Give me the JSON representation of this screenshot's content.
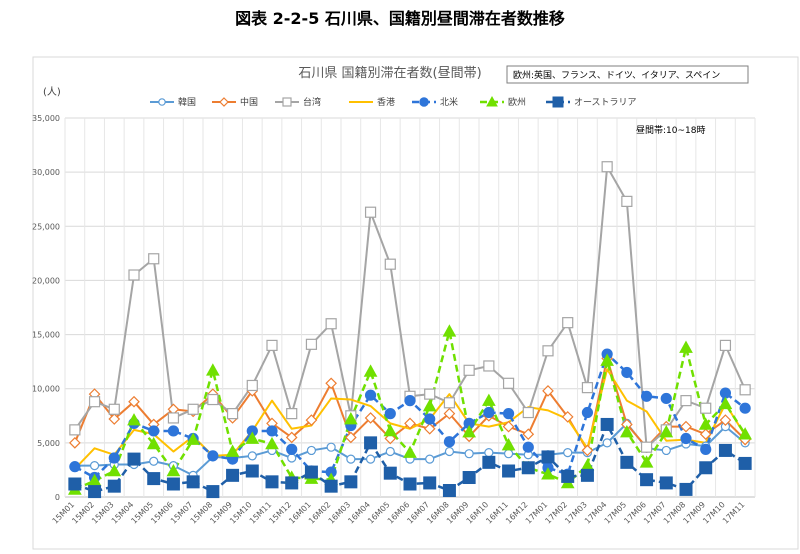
{
  "page": {
    "title": "図表 2-2-5 石川県、国籍別昼間滞在者数推移"
  },
  "chart_data": {
    "type": "line",
    "title": "石川県 国籍別滞在者数(昼間帯)",
    "note": "欧州:英国、フランス、ドイツ、イタリア、スペイン",
    "period_note": "昼間帯:10~18時",
    "ylabel": "(人)",
    "xlabel": "",
    "ylim": [
      0,
      35000
    ],
    "yticks": [
      0,
      5000,
      10000,
      15000,
      20000,
      25000,
      30000,
      35000
    ],
    "ytick_labels": [
      "0",
      "5,000",
      "10,000",
      "15,000",
      "20,000",
      "25,000",
      "30,000",
      "35,000"
    ],
    "grid": true,
    "legend_position": "top",
    "categories": [
      "15M01",
      "15M02",
      "15M03",
      "15M04",
      "15M05",
      "15M06",
      "15M07",
      "15M08",
      "15M09",
      "15M10",
      "15M11",
      "15M12",
      "16M01",
      "16M02",
      "16M03",
      "16M04",
      "16M05",
      "16M06",
      "16M07",
      "16M08",
      "16M09",
      "16M10",
      "16M11",
      "16M12",
      "17M01",
      "17M02",
      "17M03",
      "17M04",
      "17M05",
      "17M06",
      "17M07",
      "17M08",
      "17M09",
      "17M10",
      "17M11"
    ],
    "x_tick_labels": [
      "15M01",
      "15M02",
      "15M03",
      "15M04",
      "15M05",
      "15M06",
      "15M07",
      "15M08",
      "15M09",
      "15M10",
      "15M11",
      "15M12",
      "16M01",
      "16M02",
      "16M03",
      "16M04",
      "16M05",
      "16M06",
      "16M07",
      "16M08",
      "16M09",
      "16M10",
      "16M11",
      "16M12",
      "17M01",
      "17M02",
      "17M03",
      "17M04",
      "17M05",
      "17M06",
      "17M07",
      "17M08",
      "17M09",
      "17M10",
      "17M11"
    ],
    "series": [
      {
        "name": "韓国",
        "color": "#5B9BD5",
        "dash": "solid",
        "marker": "circle-open",
        "marker_size": 5,
        "stroke_width": 2,
        "values": [
          2900,
          2900,
          3000,
          3000,
          3300,
          2900,
          2000,
          3700,
          3600,
          3800,
          4300,
          3600,
          4300,
          4600,
          3500,
          3500,
          4200,
          3500,
          3500,
          4200,
          4000,
          4100,
          4000,
          3900,
          3900,
          4100,
          4100,
          5000,
          6800,
          4500,
          4300,
          4900,
          4700,
          6500,
          5000
        ]
      },
      {
        "name": "中国",
        "color": "#ED7D31",
        "dash": "solid",
        "marker": "diamond-open",
        "marker_size": 5,
        "stroke_width": 2,
        "values": [
          5000,
          9500,
          7200,
          8800,
          6700,
          8100,
          7900,
          9500,
          7300,
          9800,
          6800,
          5500,
          7100,
          10500,
          5500,
          7300,
          5400,
          6800,
          6300,
          7700,
          5600,
          7500,
          6500,
          5800,
          9800,
          7400,
          4300,
          12800,
          6700,
          4600,
          6500,
          6500,
          5800,
          7100,
          5300
        ]
      },
      {
        "name": "台湾",
        "color": "#A5A5A5",
        "dash": "solid",
        "marker": "square-open",
        "marker_size": 5,
        "stroke_width": 2,
        "values": [
          6200,
          8800,
          8100,
          20500,
          22000,
          7300,
          8100,
          9000,
          7700,
          10300,
          14000,
          7700,
          14100,
          16000,
          7500,
          26300,
          21500,
          9300,
          9500,
          8700,
          11700,
          12100,
          10500,
          7800,
          13500,
          16100,
          10100,
          30500,
          27300,
          4600,
          6200,
          8900,
          8200,
          14000,
          9900
        ]
      },
      {
        "name": "香港",
        "color": "#FFC000",
        "dash": "solid",
        "marker": "none",
        "marker_size": 0,
        "stroke_width": 2,
        "values": [
          2600,
          4500,
          3900,
          6200,
          5800,
          4200,
          5600,
          3800,
          3900,
          6100,
          8900,
          6300,
          6600,
          9100,
          9000,
          8400,
          6800,
          6300,
          7200,
          9500,
          6800,
          6500,
          6900,
          8300,
          8000,
          7200,
          4500,
          11800,
          8900,
          7900,
          5200,
          5300,
          5000,
          8600,
          5700
        ]
      },
      {
        "name": "北米",
        "color": "#2E75D9",
        "dash": "dashed",
        "marker": "circle",
        "marker_size": 6,
        "stroke_width": 2.5,
        "values": [
          2800,
          1800,
          3600,
          6800,
          6100,
          6100,
          5400,
          3800,
          3500,
          6100,
          6100,
          4400,
          2400,
          2300,
          6600,
          9400,
          7700,
          8900,
          7200,
          5100,
          6800,
          7800,
          7700,
          4600,
          2700,
          2100,
          7800,
          13200,
          11500,
          9300,
          9100,
          5400,
          4400,
          9600,
          8200
        ]
      },
      {
        "name": "欧州",
        "color": "#70E000",
        "dash": "dashed",
        "marker": "triangle",
        "marker_size": 6,
        "stroke_width": 2.5,
        "values": [
          700,
          1500,
          2400,
          7100,
          4900,
          2400,
          5300,
          11700,
          4200,
          5400,
          4900,
          1800,
          1700,
          1600,
          7200,
          11600,
          6100,
          4100,
          8400,
          15300,
          6000,
          8900,
          4800,
          2700,
          2100,
          1300,
          2900,
          12600,
          6000,
          3200,
          6000,
          13800,
          6700,
          8600,
          5800
        ]
      },
      {
        "name": "オーストラリア",
        "color": "#1F5FA8",
        "dash": "dashed",
        "marker": "square",
        "marker_size": 6,
        "stroke_width": 2.5,
        "values": [
          1200,
          500,
          1000,
          3500,
          1700,
          1200,
          1400,
          500,
          2000,
          2400,
          1400,
          1300,
          2300,
          1000,
          1400,
          5000,
          2200,
          1200,
          1300,
          600,
          1800,
          3200,
          2400,
          2700,
          3700,
          1900,
          2000,
          6700,
          3200,
          1600,
          1300,
          700,
          2700,
          4300,
          3100
        ]
      }
    ]
  }
}
